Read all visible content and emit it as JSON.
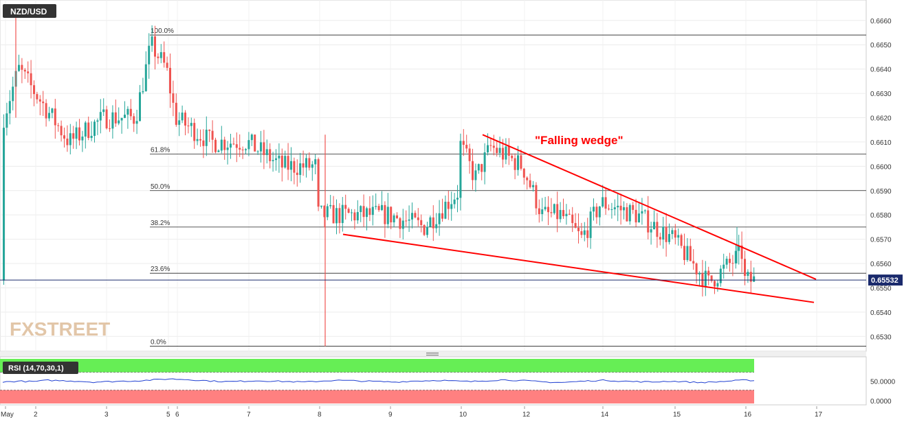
{
  "symbol": "NZD/USD",
  "annotation": "\"Falling wedge\"",
  "watermark": "FXSTREET",
  "current_price": "0.65532",
  "colors": {
    "bull": "#26a69a",
    "bear": "#ef5350",
    "wedge": "#ff0000",
    "rsi_line": "#1f3fd1",
    "rsi_overbought": "#66ee55",
    "rsi_oversold": "#ff8080",
    "price_tag": "#1a2a6c"
  },
  "chart_data": [
    {
      "type": "candlestick",
      "title": "NZD/USD",
      "y_ticks": [
        "0.6530",
        "0.6540",
        "0.6550",
        "0.6560",
        "0.6570",
        "0.6580",
        "0.6590",
        "0.6600",
        "0.6610",
        "0.6620",
        "0.6630",
        "0.6640",
        "0.6650",
        "0.6660"
      ],
      "ylim": [
        0.6525,
        0.6667
      ],
      "x_ticks": [
        "May",
        "2",
        "3",
        "5",
        "6",
        "7",
        "8",
        "9",
        "10",
        "12",
        "14",
        "15",
        "16",
        "17"
      ],
      "fibonacci": [
        {
          "label": "100.0%",
          "value": 0.6654
        },
        {
          "label": "61.8%",
          "value": 0.6605
        },
        {
          "label": "50.0%",
          "value": 0.659
        },
        {
          "label": "38.2%",
          "value": 0.6575
        },
        {
          "label": "23.6%",
          "value": 0.6556
        },
        {
          "label": "0.0%",
          "value": 0.6526
        }
      ],
      "last_price": 0.65532,
      "wedge_upper": [
        {
          "x": "11 May",
          "y": 0.6613
        },
        {
          "x": "16 May",
          "y": 0.6554
        }
      ],
      "wedge_lower": [
        {
          "x": "8 May",
          "y": 0.6572
        },
        {
          "x": "17 May",
          "y": 0.6544
        }
      ],
      "anchors": [
        {
          "x": "1 May",
          "y": 0.6655
        },
        {
          "x": "1 May",
          "y": 0.662
        },
        {
          "x": "1.5 May",
          "y": 0.664
        },
        {
          "x": "2.5 May",
          "y": 0.661
        },
        {
          "x": "3 May",
          "y": 0.662
        },
        {
          "x": "3.5 May",
          "y": 0.662
        },
        {
          "x": "4 May",
          "y": 0.662
        },
        {
          "x": "4.5 May",
          "y": 0.665
        },
        {
          "x": "5 May",
          "y": 0.664
        },
        {
          "x": "6 May",
          "y": 0.662
        },
        {
          "x": "6.5 May",
          "y": 0.661
        },
        {
          "x": "7 May",
          "y": 0.661
        },
        {
          "x": "7.5 May",
          "y": 0.66
        },
        {
          "x": "8 May",
          "y": 0.66
        },
        {
          "x": "8 May",
          "y": 0.658
        },
        {
          "x": "8.5 May",
          "y": 0.658
        },
        {
          "x": "9 May",
          "y": 0.658
        },
        {
          "x": "9.5 May",
          "y": 0.6575
        },
        {
          "x": "10 May",
          "y": 0.659
        },
        {
          "x": "10 May",
          "y": 0.661
        },
        {
          "x": "10.5 May",
          "y": 0.6595
        },
        {
          "x": "11 May",
          "y": 0.6608
        },
        {
          "x": "12 May",
          "y": 0.66
        },
        {
          "x": "12.5 May",
          "y": 0.658
        },
        {
          "x": "13 May",
          "y": 0.658
        },
        {
          "x": "13.5 May",
          "y": 0.657
        },
        {
          "x": "14 May",
          "y": 0.6585
        },
        {
          "x": "14.5 May",
          "y": 0.658
        },
        {
          "x": "15 May",
          "y": 0.657
        },
        {
          "x": "15.5 May",
          "y": 0.6552
        },
        {
          "x": "16 May",
          "y": 0.6565
        },
        {
          "x": "16 May",
          "y": 0.6553
        }
      ]
    },
    {
      "type": "line",
      "title": "RSI (14,70,30,1)",
      "y_ticks": [
        "0.0000",
        "50.0000"
      ],
      "ylim": [
        0,
        100
      ],
      "series": [
        {
          "values": [
            48,
            50,
            49,
            52,
            51,
            50,
            48,
            49,
            50,
            51,
            53,
            55,
            54,
            52,
            50,
            49,
            50,
            51,
            50,
            49,
            48,
            50,
            52,
            51,
            50,
            49,
            48,
            50,
            51,
            52,
            50,
            49,
            51,
            53,
            52,
            50,
            48,
            47,
            49,
            51,
            52,
            50,
            49,
            48,
            50,
            49,
            47,
            48,
            50,
            52
          ]
        }
      ],
      "overbought": 70,
      "oversold": 30
    }
  ]
}
